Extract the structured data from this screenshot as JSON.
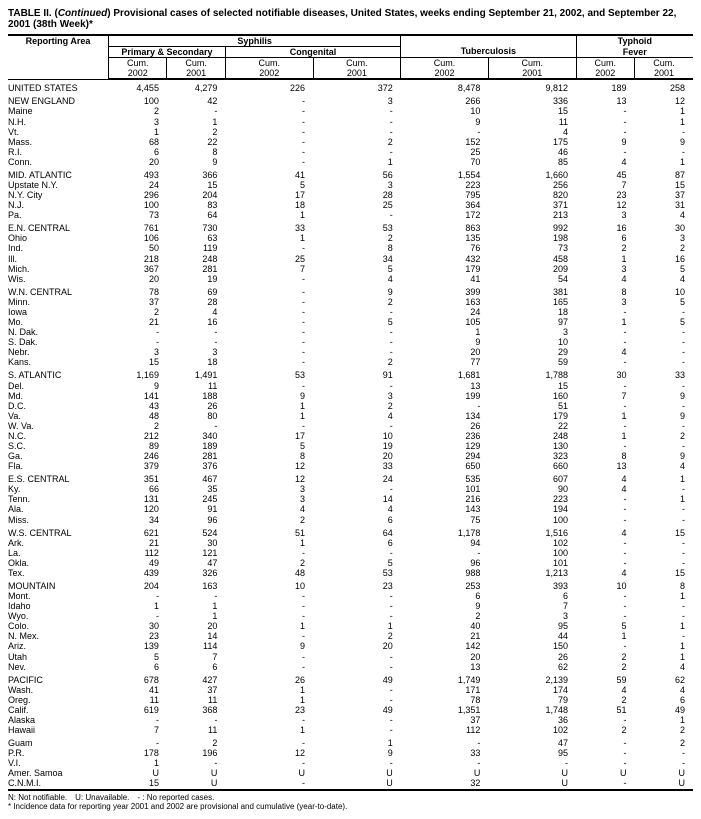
{
  "title_prefix": "TABLE II. (",
  "title_cont": "Continued",
  "title_suffix": ") Provisional cases of selected notifiable diseases, United States, weeks ending September 21, 2002, and September 22, 2001 (38th Week)*",
  "headers": {
    "syphilis": "Syphilis",
    "primary_secondary": "Primary & Secondary",
    "congenital": "Congenital",
    "tuberculosis": "Tuberculosis",
    "typhoid": "Typhoid",
    "fever": "Fever",
    "cum": "Cum.",
    "y2002": "2002",
    "y2001": "2001",
    "reporting_area": "Reporting Area"
  },
  "footnote1": "N: Not notifiable. U: Unavailable. - : No reported cases.",
  "footnote2": "* Incidence data for reporting year 2001 and 2002 are provisional and cumulative (year-to-date).",
  "rows": [
    {
      "s": 1,
      "a": "UNITED STATES",
      "c": [
        "4,455",
        "4,279",
        "226",
        "372",
        "8,478",
        "9,812",
        "189",
        "258"
      ]
    },
    {
      "s": 1,
      "a": "NEW ENGLAND",
      "c": [
        "100",
        "42",
        "-",
        "3",
        "266",
        "336",
        "13",
        "12"
      ]
    },
    {
      "a": "Maine",
      "c": [
        "2",
        "-",
        "-",
        "-",
        "10",
        "15",
        "-",
        "1"
      ]
    },
    {
      "a": "N.H.",
      "c": [
        "3",
        "1",
        "-",
        "-",
        "9",
        "11",
        "-",
        "1"
      ]
    },
    {
      "a": "Vt.",
      "c": [
        "1",
        "2",
        "-",
        "-",
        "-",
        "4",
        "-",
        "-"
      ]
    },
    {
      "a": "Mass.",
      "c": [
        "68",
        "22",
        "-",
        "2",
        "152",
        "175",
        "9",
        "9"
      ]
    },
    {
      "a": "R.I.",
      "c": [
        "6",
        "8",
        "-",
        "-",
        "25",
        "46",
        "-",
        "-"
      ]
    },
    {
      "a": "Conn.",
      "c": [
        "20",
        "9",
        "-",
        "1",
        "70",
        "85",
        "4",
        "1"
      ]
    },
    {
      "s": 1,
      "a": "MID. ATLANTIC",
      "c": [
        "493",
        "366",
        "41",
        "56",
        "1,554",
        "1,660",
        "45",
        "87"
      ]
    },
    {
      "a": "Upstate N.Y.",
      "c": [
        "24",
        "15",
        "5",
        "3",
        "223",
        "256",
        "7",
        "15"
      ]
    },
    {
      "a": "N.Y. City",
      "c": [
        "296",
        "204",
        "17",
        "28",
        "795",
        "820",
        "23",
        "37"
      ]
    },
    {
      "a": "N.J.",
      "c": [
        "100",
        "83",
        "18",
        "25",
        "364",
        "371",
        "12",
        "31"
      ]
    },
    {
      "a": "Pa.",
      "c": [
        "73",
        "64",
        "1",
        "-",
        "172",
        "213",
        "3",
        "4"
      ]
    },
    {
      "s": 1,
      "a": "E.N. CENTRAL",
      "c": [
        "761",
        "730",
        "33",
        "53",
        "863",
        "992",
        "16",
        "30"
      ]
    },
    {
      "a": "Ohio",
      "c": [
        "106",
        "63",
        "1",
        "2",
        "135",
        "198",
        "6",
        "3"
      ]
    },
    {
      "a": "Ind.",
      "c": [
        "50",
        "119",
        "-",
        "8",
        "76",
        "73",
        "2",
        "2"
      ]
    },
    {
      "a": "Ill.",
      "c": [
        "218",
        "248",
        "25",
        "34",
        "432",
        "458",
        "1",
        "16"
      ]
    },
    {
      "a": "Mich.",
      "c": [
        "367",
        "281",
        "7",
        "5",
        "179",
        "209",
        "3",
        "5"
      ]
    },
    {
      "a": "Wis.",
      "c": [
        "20",
        "19",
        "-",
        "4",
        "41",
        "54",
        "4",
        "4"
      ]
    },
    {
      "s": 1,
      "a": "W.N. CENTRAL",
      "c": [
        "78",
        "69",
        "-",
        "9",
        "399",
        "381",
        "8",
        "10"
      ]
    },
    {
      "a": "Minn.",
      "c": [
        "37",
        "28",
        "-",
        "2",
        "163",
        "165",
        "3",
        "5"
      ]
    },
    {
      "a": "Iowa",
      "c": [
        "2",
        "4",
        "-",
        "-",
        "24",
        "18",
        "-",
        "-"
      ]
    },
    {
      "a": "Mo.",
      "c": [
        "21",
        "16",
        "-",
        "5",
        "105",
        "97",
        "1",
        "5"
      ]
    },
    {
      "a": "N. Dak.",
      "c": [
        "-",
        "-",
        "-",
        "-",
        "1",
        "3",
        "-",
        "-"
      ]
    },
    {
      "a": "S. Dak.",
      "c": [
        "-",
        "-",
        "-",
        "-",
        "9",
        "10",
        "-",
        "-"
      ]
    },
    {
      "a": "Nebr.",
      "c": [
        "3",
        "3",
        "-",
        "-",
        "20",
        "29",
        "4",
        "-"
      ]
    },
    {
      "a": "Kans.",
      "c": [
        "15",
        "18",
        "-",
        "2",
        "77",
        "59",
        "-",
        "-"
      ]
    },
    {
      "s": 1,
      "a": "S. ATLANTIC",
      "c": [
        "1,169",
        "1,491",
        "53",
        "91",
        "1,681",
        "1,788",
        "30",
        "33"
      ]
    },
    {
      "a": "Del.",
      "c": [
        "9",
        "11",
        "-",
        "-",
        "13",
        "15",
        "-",
        "-"
      ]
    },
    {
      "a": "Md.",
      "c": [
        "141",
        "188",
        "9",
        "3",
        "199",
        "160",
        "7",
        "9"
      ]
    },
    {
      "a": "D.C.",
      "c": [
        "43",
        "26",
        "1",
        "2",
        "-",
        "51",
        "-",
        "-"
      ]
    },
    {
      "a": "Va.",
      "c": [
        "48",
        "80",
        "1",
        "4",
        "134",
        "179",
        "1",
        "9"
      ]
    },
    {
      "a": "W. Va.",
      "c": [
        "2",
        "-",
        "-",
        "-",
        "26",
        "22",
        "-",
        "-"
      ]
    },
    {
      "a": "N.C.",
      "c": [
        "212",
        "340",
        "17",
        "10",
        "236",
        "248",
        "1",
        "2"
      ]
    },
    {
      "a": "S.C.",
      "c": [
        "89",
        "189",
        "5",
        "19",
        "129",
        "130",
        "-",
        "-"
      ]
    },
    {
      "a": "Ga.",
      "c": [
        "246",
        "281",
        "8",
        "20",
        "294",
        "323",
        "8",
        "9"
      ]
    },
    {
      "a": "Fla.",
      "c": [
        "379",
        "376",
        "12",
        "33",
        "650",
        "660",
        "13",
        "4"
      ]
    },
    {
      "s": 1,
      "a": "E.S. CENTRAL",
      "c": [
        "351",
        "467",
        "12",
        "24",
        "535",
        "607",
        "4",
        "1"
      ]
    },
    {
      "a": "Ky.",
      "c": [
        "66",
        "35",
        "3",
        "-",
        "101",
        "90",
        "4",
        "-"
      ]
    },
    {
      "a": "Tenn.",
      "c": [
        "131",
        "245",
        "3",
        "14",
        "216",
        "223",
        "-",
        "1"
      ]
    },
    {
      "a": "Ala.",
      "c": [
        "120",
        "91",
        "4",
        "4",
        "143",
        "194",
        "-",
        "-"
      ]
    },
    {
      "a": "Miss.",
      "c": [
        "34",
        "96",
        "2",
        "6",
        "75",
        "100",
        "-",
        "-"
      ]
    },
    {
      "s": 1,
      "a": "W.S. CENTRAL",
      "c": [
        "621",
        "524",
        "51",
        "64",
        "1,178",
        "1,516",
        "4",
        "15"
      ]
    },
    {
      "a": "Ark.",
      "c": [
        "21",
        "30",
        "1",
        "6",
        "94",
        "102",
        "-",
        "-"
      ]
    },
    {
      "a": "La.",
      "c": [
        "112",
        "121",
        "-",
        "-",
        "-",
        "100",
        "-",
        "-"
      ]
    },
    {
      "a": "Okla.",
      "c": [
        "49",
        "47",
        "2",
        "5",
        "96",
        "101",
        "-",
        "-"
      ]
    },
    {
      "a": "Tex.",
      "c": [
        "439",
        "326",
        "48",
        "53",
        "988",
        "1,213",
        "4",
        "15"
      ]
    },
    {
      "s": 1,
      "a": "MOUNTAIN",
      "c": [
        "204",
        "163",
        "10",
        "23",
        "253",
        "393",
        "10",
        "8"
      ]
    },
    {
      "a": "Mont.",
      "c": [
        "-",
        "-",
        "-",
        "-",
        "6",
        "6",
        "-",
        "1"
      ]
    },
    {
      "a": "Idaho",
      "c": [
        "1",
        "1",
        "-",
        "-",
        "9",
        "7",
        "-",
        "-"
      ]
    },
    {
      "a": "Wyo.",
      "c": [
        "-",
        "1",
        "-",
        "-",
        "2",
        "3",
        "-",
        "-"
      ]
    },
    {
      "a": "Colo.",
      "c": [
        "30",
        "20",
        "1",
        "1",
        "40",
        "95",
        "5",
        "1"
      ]
    },
    {
      "a": "N. Mex.",
      "c": [
        "23",
        "14",
        "-",
        "2",
        "21",
        "44",
        "1",
        "-"
      ]
    },
    {
      "a": "Ariz.",
      "c": [
        "139",
        "114",
        "9",
        "20",
        "142",
        "150",
        "-",
        "1"
      ]
    },
    {
      "a": "Utah",
      "c": [
        "5",
        "7",
        "-",
        "-",
        "20",
        "26",
        "2",
        "1"
      ]
    },
    {
      "a": "Nev.",
      "c": [
        "6",
        "6",
        "-",
        "-",
        "13",
        "62",
        "2",
        "4"
      ]
    },
    {
      "s": 1,
      "a": "PACIFIC",
      "c": [
        "678",
        "427",
        "26",
        "49",
        "1,749",
        "2,139",
        "59",
        "62"
      ]
    },
    {
      "a": "Wash.",
      "c": [
        "41",
        "37",
        "1",
        "-",
        "171",
        "174",
        "4",
        "4"
      ]
    },
    {
      "a": "Oreg.",
      "c": [
        "11",
        "11",
        "1",
        "-",
        "78",
        "79",
        "2",
        "6"
      ]
    },
    {
      "a": "Calif.",
      "c": [
        "619",
        "368",
        "23",
        "49",
        "1,351",
        "1,748",
        "51",
        "49"
      ]
    },
    {
      "a": "Alaska",
      "c": [
        "-",
        "-",
        "-",
        "-",
        "37",
        "36",
        "-",
        "1"
      ]
    },
    {
      "a": "Hawaii",
      "c": [
        "7",
        "11",
        "1",
        "-",
        "112",
        "102",
        "2",
        "2"
      ]
    },
    {
      "s": 1,
      "a": "Guam",
      "c": [
        "-",
        "2",
        "-",
        "1",
        "-",
        "47",
        "-",
        "2"
      ]
    },
    {
      "a": "P.R.",
      "c": [
        "178",
        "196",
        "12",
        "9",
        "33",
        "95",
        "-",
        "-"
      ]
    },
    {
      "a": "V.I.",
      "c": [
        "1",
        "-",
        "-",
        "-",
        "-",
        "-",
        "-",
        "-"
      ]
    },
    {
      "a": "Amer. Samoa",
      "c": [
        "U",
        "U",
        "U",
        "U",
        "U",
        "U",
        "U",
        "U"
      ]
    },
    {
      "a": "C.N.M.I.",
      "c": [
        "15",
        "U",
        "-",
        "U",
        "32",
        "U",
        "-",
        "U"
      ]
    }
  ]
}
